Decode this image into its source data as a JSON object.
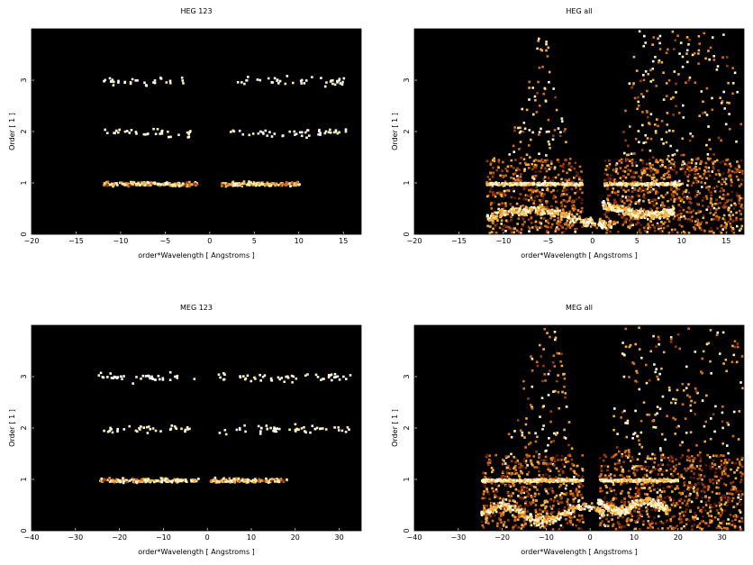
{
  "chart_data": [
    {
      "type": "heatmap",
      "title": "HEG 123",
      "xlabel": "order*Wavelength [ Angstroms ]",
      "ylabel": "Order [ 1 ]",
      "xlim": [
        -20,
        17
      ],
      "ylim": [
        0,
        4
      ],
      "xticks": [
        -20,
        -15,
        -10,
        -5,
        0,
        5,
        10,
        15
      ],
      "yticks": [
        0,
        1,
        2,
        3
      ],
      "background": "#000000",
      "colormap": [
        "#1a0500",
        "#5a1a05",
        "#9a3a0a",
        "#d87018",
        "#f4b040",
        "#fff0b0",
        "#ffffff"
      ],
      "bands": [
        {
          "order": 1,
          "x": [
            -12,
            -1.5
          ],
          "density": 1.0,
          "core": [
            -9,
            -3
          ]
        },
        {
          "order": 1,
          "x": [
            1.2,
            10
          ],
          "density": 1.0,
          "core": [
            2,
            7
          ]
        },
        {
          "order": 2,
          "x": [
            -12,
            -2
          ],
          "density": 0.18
        },
        {
          "order": 2,
          "x": [
            2,
            16
          ],
          "density": 0.15
        },
        {
          "order": 3,
          "x": [
            -12,
            -3
          ],
          "density": 0.12
        },
        {
          "order": 3,
          "x": [
            3,
            15
          ],
          "density": 0.1
        }
      ]
    },
    {
      "type": "heatmap",
      "title": "HEG all",
      "xlabel": "order*Wavelength [ Angstroms ]",
      "ylabel": "Order [ 1 ]",
      "xlim": [
        -20,
        17
      ],
      "ylim": [
        0,
        4
      ],
      "xticks": [
        -20,
        -15,
        -10,
        -5,
        0,
        5,
        10,
        15
      ],
      "yticks": [
        0,
        1,
        2,
        3
      ],
      "background": "#000000",
      "colormap": [
        "#1a0500",
        "#5a1a05",
        "#9a3a0a",
        "#d87018",
        "#f4b040",
        "#fff0b0",
        "#ffffff"
      ],
      "wedge": {
        "left_edge": [
          -12,
          -6
        ],
        "right_edge": [
          17,
          5
        ],
        "gap": [
          -1,
          1
        ],
        "bright_order": 1
      }
    },
    {
      "type": "heatmap",
      "title": "MEG 123",
      "xlabel": "order*Wavelength [ Angstroms ]",
      "ylabel": "Order [ 1 ]",
      "xlim": [
        -40,
        35
      ],
      "ylim": [
        0,
        4
      ],
      "xticks": [
        -40,
        -30,
        -20,
        -10,
        0,
        10,
        20,
        30
      ],
      "yticks": [
        0,
        1,
        2,
        3
      ],
      "background": "#000000",
      "colormap": [
        "#1a0500",
        "#5a1a05",
        "#9a3a0a",
        "#d87018",
        "#f4b040",
        "#fff0b0",
        "#ffffff"
      ],
      "bands": [
        {
          "order": 1,
          "x": [
            -25,
            -2
          ],
          "density": 1.0,
          "core": [
            -15,
            -3
          ]
        },
        {
          "order": 1,
          "x": [
            0.5,
            18
          ],
          "density": 1.0,
          "core": [
            1,
            11
          ]
        },
        {
          "order": 2,
          "x": [
            -25,
            -4
          ],
          "density": 0.18
        },
        {
          "order": 2,
          "x": [
            2,
            33
          ],
          "density": 0.15
        },
        {
          "order": 3,
          "x": [
            -25,
            -3
          ],
          "density": 0.16
        },
        {
          "order": 3,
          "x": [
            2,
            33
          ],
          "density": 0.13
        }
      ]
    },
    {
      "type": "heatmap",
      "title": "MEG all",
      "xlabel": "order*Wavelength [ Angstroms ]",
      "ylabel": "Order [ 1 ]",
      "xlim": [
        -40,
        35
      ],
      "ylim": [
        0,
        4
      ],
      "xticks": [
        -40,
        -30,
        -20,
        -10,
        0,
        10,
        20,
        30
      ],
      "yticks": [
        0,
        1,
        2,
        3
      ],
      "background": "#000000",
      "colormap": [
        "#1a0500",
        "#5a1a05",
        "#9a3a0a",
        "#d87018",
        "#f4b040",
        "#fff0b0",
        "#ffffff"
      ],
      "wedge": {
        "left_edge": [
          -25,
          -12
        ],
        "right_edge": [
          35,
          10
        ],
        "gap": [
          -1.5,
          1.5
        ],
        "bright_order": 1
      }
    }
  ]
}
